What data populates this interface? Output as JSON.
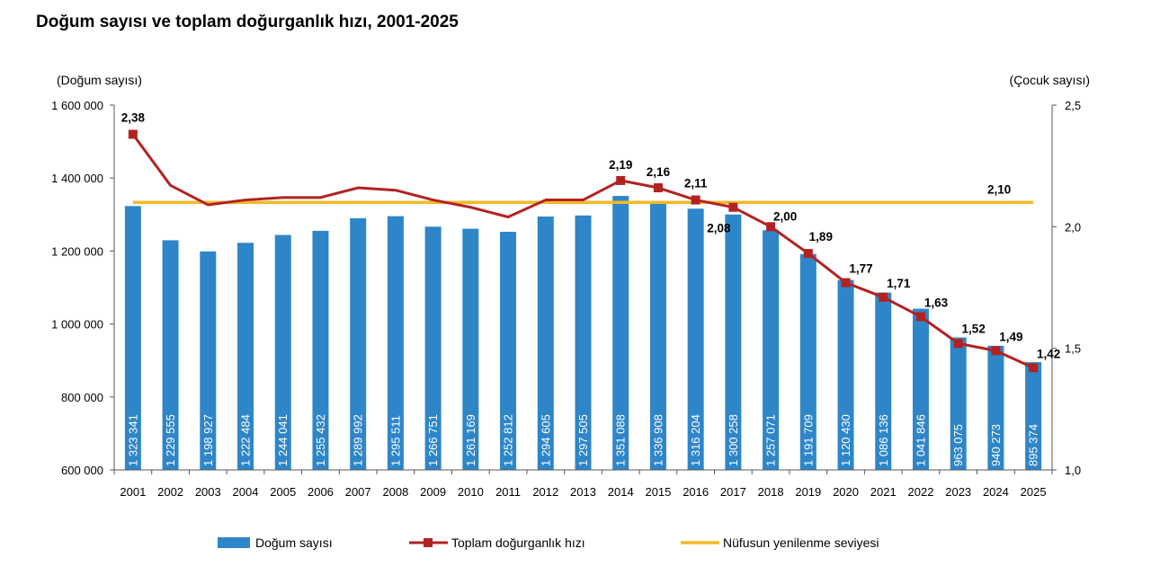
{
  "title": "Doğum sayısı ve toplam doğurganlık hızı, 2001-2025",
  "chart_data": {
    "type": "bar",
    "title": "Doğum sayısı ve toplam doğurganlık hızı, 2001-2025",
    "categories": [
      "2001",
      "2002",
      "2003",
      "2004",
      "2005",
      "2006",
      "2007",
      "2008",
      "2009",
      "2010",
      "2011",
      "2012",
      "2013",
      "2014",
      "2015",
      "2016",
      "2017",
      "2018",
      "2019",
      "2020",
      "2021",
      "2022",
      "2023",
      "2024",
      "2025"
    ],
    "ylabel_left": "(Doğum sayısı)",
    "ylabel_right": "(Çocuk sayısı)",
    "ylim_left": [
      600000,
      1600000
    ],
    "ylim_right": [
      1.0,
      2.5
    ],
    "yticks_left": [
      600000,
      800000,
      1000000,
      1200000,
      1400000,
      1600000
    ],
    "yticks_left_labels": [
      "600 000",
      "800 000",
      "1 000 000",
      "1 200 000",
      "1 400 000",
      "1 600 000"
    ],
    "yticks_right": [
      1.0,
      1.5,
      2.0,
      2.5
    ],
    "yticks_right_labels": [
      "1,0",
      "1,5",
      "2,0",
      "2,5"
    ],
    "grid": false,
    "legend_position": "bottom",
    "series": [
      {
        "name": "Doğum sayısı",
        "type": "bar",
        "axis": "left",
        "color": "#2E86C8",
        "values": [
          1323341,
          1229555,
          1198927,
          1222484,
          1244041,
          1255432,
          1289992,
          1295511,
          1266751,
          1261169,
          1252812,
          1294605,
          1297505,
          1351088,
          1336908,
          1316204,
          1300258,
          1257071,
          1191709,
          1120430,
          1086136,
          1041846,
          963075,
          940273,
          895374
        ],
        "labels": [
          "1 323 341",
          "1 229 555",
          "1 198 927",
          "1 222 484",
          "1 244 041",
          "1 255 432",
          "1 289 992",
          "1 295 511",
          "1 266 751",
          "1 261 169",
          "1 252 812",
          "1 294 605",
          "1 297 505",
          "1 351 088",
          "1 336 908",
          "1 316 204",
          "1 300 258",
          "1 257 071",
          "1 191 709",
          "1 120 430",
          "1 086 136",
          "1 041 846",
          "963 075",
          "940 273",
          "895 374"
        ]
      },
      {
        "name": "Toplam doğurganlık hızı",
        "type": "line",
        "axis": "right",
        "color": "#B22222",
        "values": [
          2.38,
          2.17,
          2.09,
          2.11,
          2.12,
          2.12,
          2.16,
          2.15,
          2.11,
          2.08,
          2.04,
          2.11,
          2.11,
          2.19,
          2.16,
          2.11,
          2.08,
          2.0,
          1.89,
          1.77,
          1.71,
          1.63,
          1.52,
          1.49,
          1.42
        ],
        "labels": [
          "2,38",
          "",
          "",
          "",
          "",
          "",
          "",
          "",
          "",
          "",
          "",
          "",
          "",
          "2,19",
          "2,16",
          "2,11",
          "2,08",
          "2,00",
          "1,89",
          "1,77",
          "1,71",
          "1,63",
          "1,52",
          "1,49",
          "1,42"
        ]
      },
      {
        "name": "Nüfusun yenilenme seviyesi",
        "type": "line",
        "axis": "right",
        "color": "#F2B92B",
        "value": 2.1,
        "label": "2,10"
      }
    ]
  }
}
